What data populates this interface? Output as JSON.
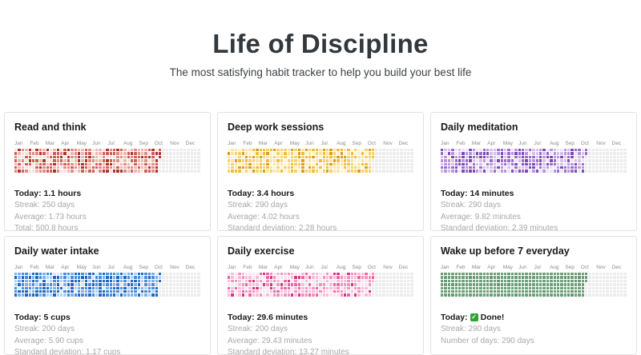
{
  "page": {
    "title": "Life of Discipline",
    "subtitle": "The most satisfying habit tracker to help you build your best life"
  },
  "months": [
    "Jan",
    "Feb",
    "Mar",
    "Apr",
    "May",
    "Jun",
    "Jul",
    "Aug",
    "Sep",
    "Oct",
    "Nov",
    "Dec"
  ],
  "grid": {
    "weeks": 53,
    "rows": 7,
    "filled_weeks": 41,
    "partial_cells": 3,
    "empty_color": "#ececec"
  },
  "check_color": "#2fa22f",
  "cards": [
    {
      "title": "Read and think",
      "seed": 101,
      "palette": [
        "#f7e1df",
        "#eeb6b0",
        "#e08b82",
        "#cf5f53",
        "#ab3428"
      ],
      "weights": [
        3,
        4,
        3,
        4,
        3
      ],
      "today": "Today: 1.1 hours",
      "stats": [
        "Streak: 250 days",
        "Average: 1.73 hours",
        "Total: 500.8 hours"
      ]
    },
    {
      "title": "Deep work sessions",
      "seed": 202,
      "palette": [
        "#fdf2d2",
        "#fce3a2",
        "#f8d06b",
        "#f2bc3a",
        "#d89e20"
      ],
      "weights": [
        3,
        4,
        4,
        3,
        2
      ],
      "today": "Today: 3.4 hours",
      "stats": [
        "Streak: 290 days",
        "Average: 4.02 hours",
        "Standard deviation: 2.28 hours"
      ]
    },
    {
      "title": "Daily meditation",
      "seed": 303,
      "palette": [
        "#ece3f6",
        "#d4bfea",
        "#b795da",
        "#9a6cc8",
        "#7d49b5"
      ],
      "weights": [
        3,
        4,
        3,
        3,
        3
      ],
      "today": "Today: 14 minutes",
      "stats": [
        "Streak: 290 days",
        "Average: 9.82 minutes",
        "Standard deviation: 2.39 minutes"
      ]
    },
    {
      "title": "Daily water intake",
      "seed": 404,
      "palette": [
        "#d9e9f9",
        "#aed0f2",
        "#7cb0e7",
        "#4a8bd8",
        "#1f66c0"
      ],
      "weights": [
        1,
        2,
        3,
        4,
        4
      ],
      "today": "Today: 5 cups",
      "stats": [
        "Streak: 200 days",
        "Average: 5.90 cups",
        "Standard deviation: 1.17 cups"
      ]
    },
    {
      "title": "Daily exercise",
      "seed": 505,
      "palette": [
        "#fce3ef",
        "#f7bcd8",
        "#f092bf",
        "#e765a3",
        "#d63384"
      ],
      "weights": [
        4,
        4,
        3,
        2,
        1
      ],
      "today": "Today: 29.6 minutes",
      "stats": [
        "Streak: 200 days",
        "Average: 29.43 minutes",
        "Standard deviation: 13.27 minutes"
      ]
    },
    {
      "title": "Wake up before 7 everyday",
      "seed": 606,
      "palette": [
        "#6d9e77",
        "#659671"
      ],
      "weights": [
        4,
        1
      ],
      "today": "Today:",
      "today_check": "✓",
      "today_suffix": "Done!",
      "stats": [
        "Streak: 290 days",
        "Number of days: 290 days"
      ]
    }
  ]
}
